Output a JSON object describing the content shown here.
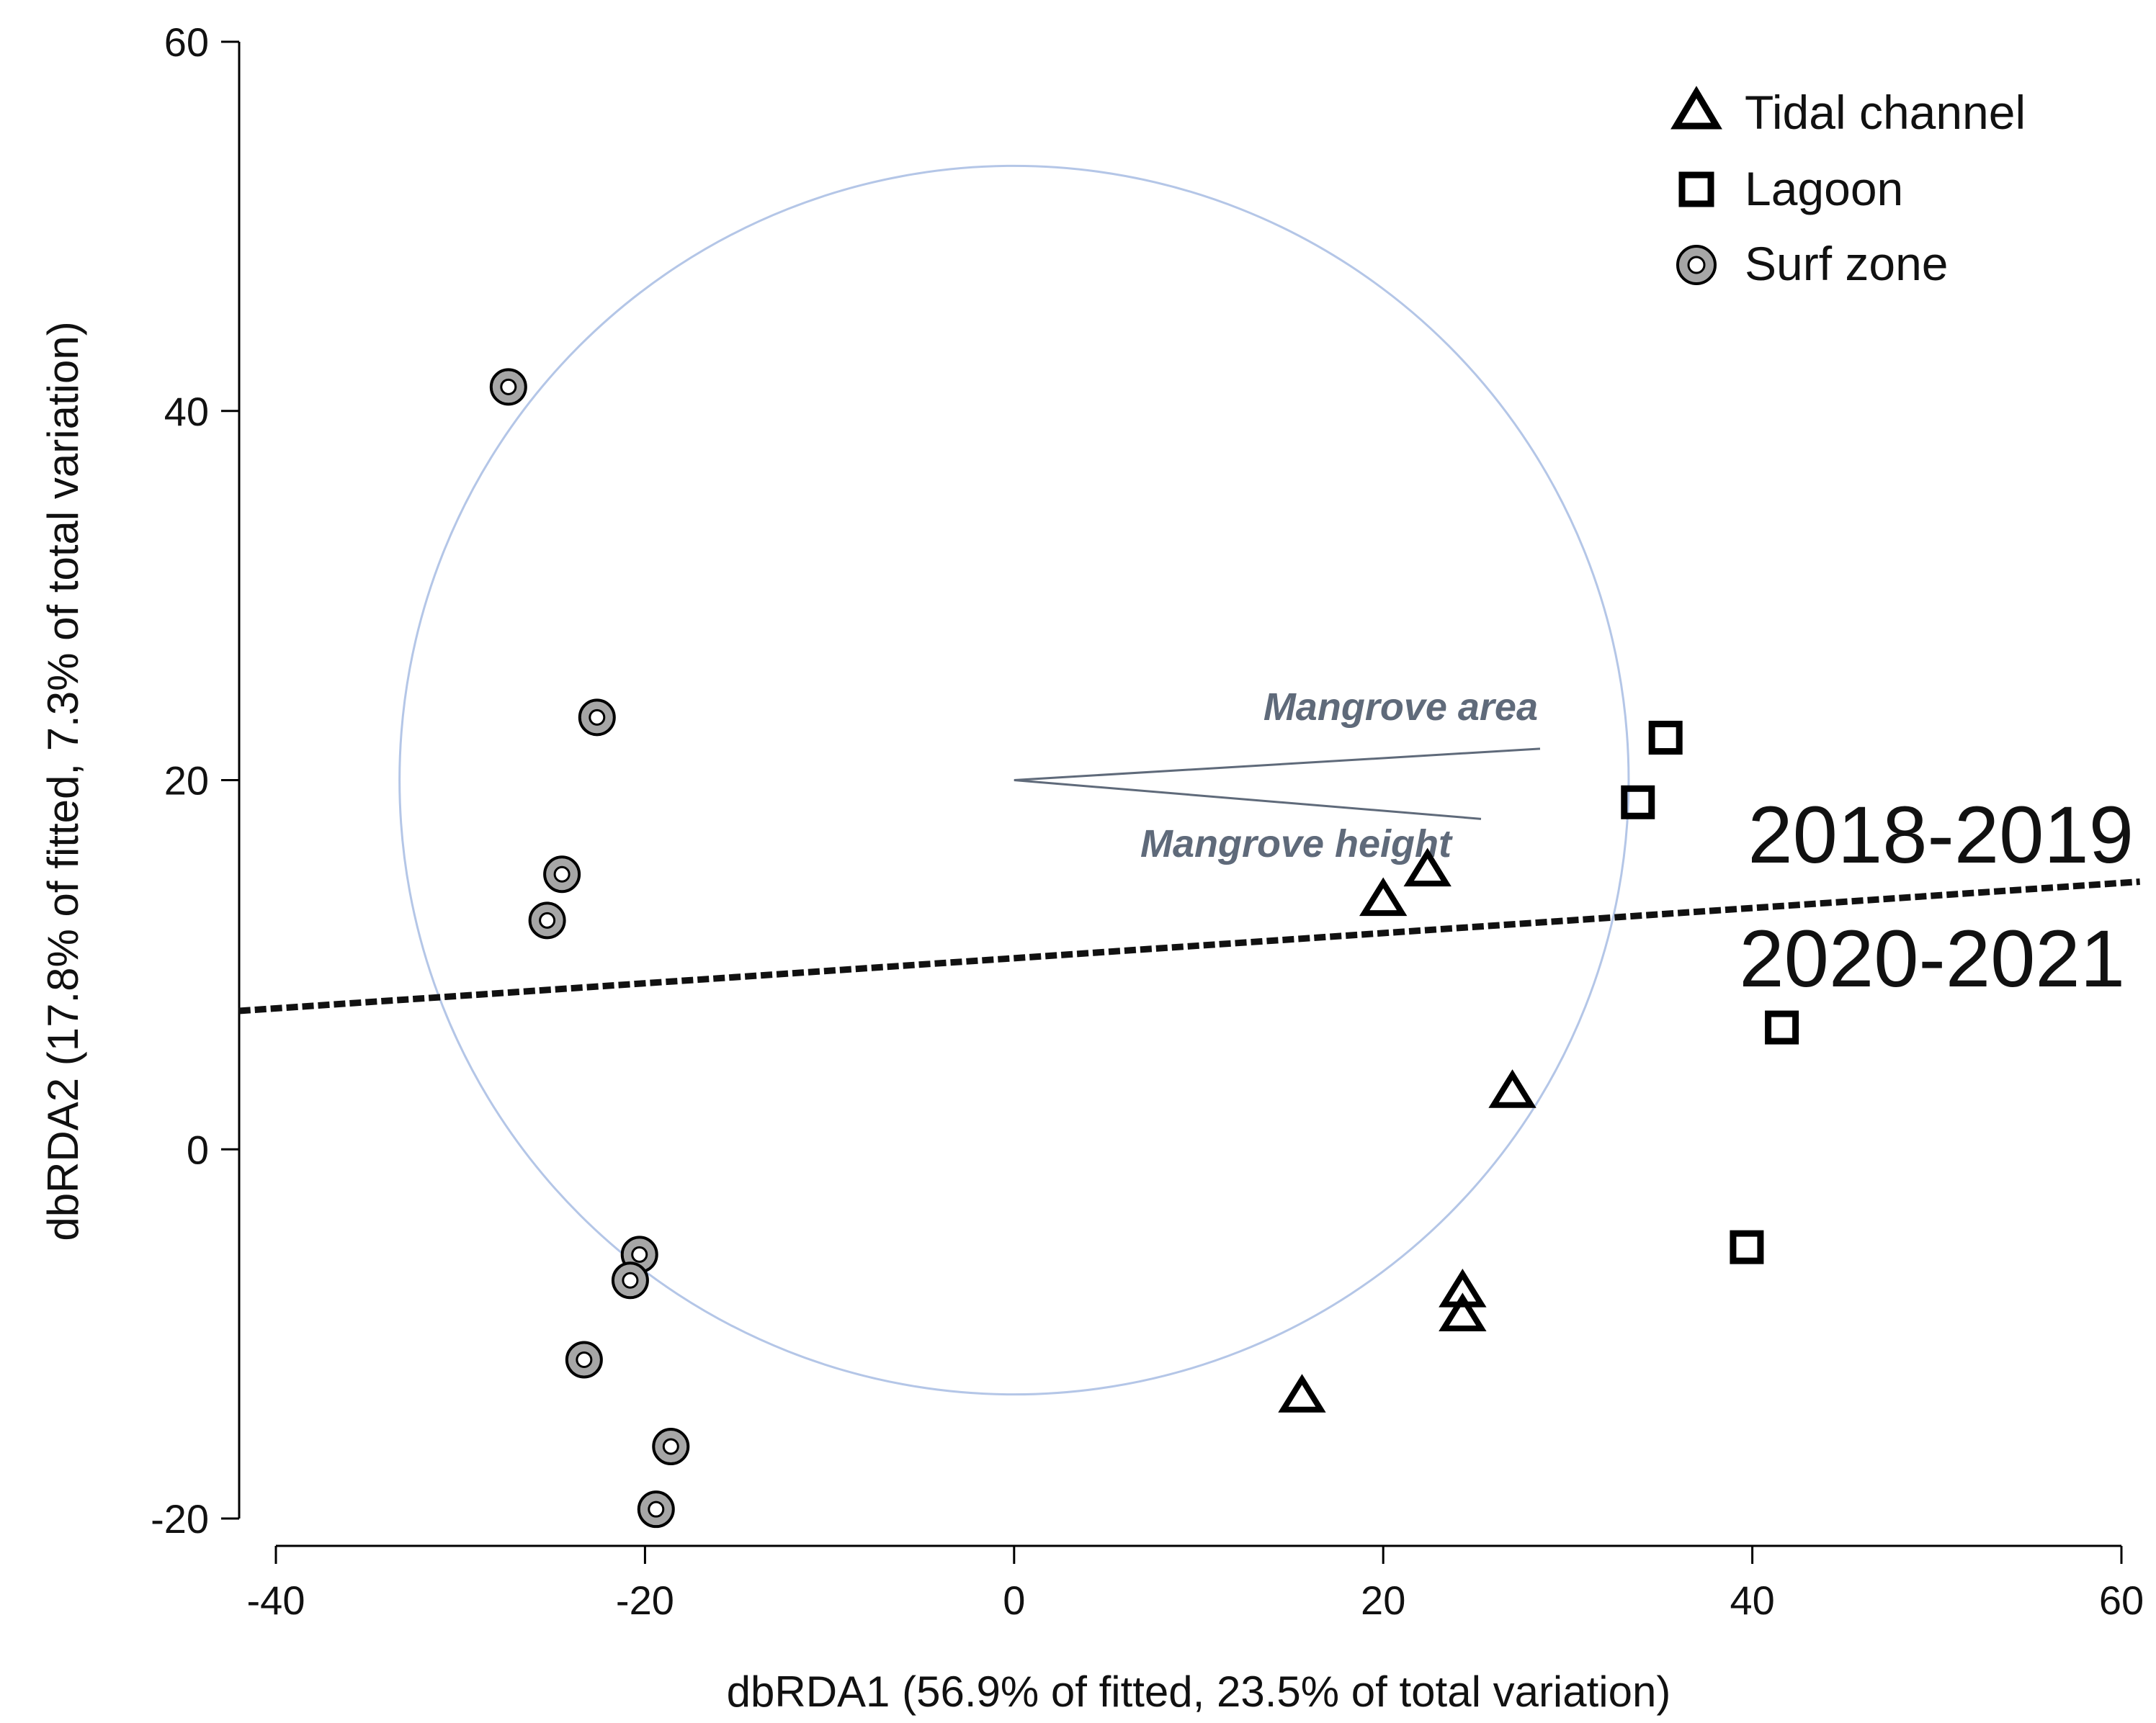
{
  "chart_data": {
    "type": "scatter",
    "title": "",
    "xlabel": "dbRDA1 (56.9% of fitted, 23.5% of total variation)",
    "ylabel": "dbRDA2 (17.8% of fitted, 7.3% of total variation)",
    "xlim": [
      -40,
      60
    ],
    "ylim": [
      -20,
      60
    ],
    "xticks": [
      -40,
      -20,
      0,
      20,
      40,
      60
    ],
    "yticks": [
      -20,
      0,
      20,
      40,
      60
    ],
    "xtick_labels": [
      "-40",
      "-20",
      "0",
      "20",
      "40",
      "60"
    ],
    "ytick_labels": [
      "-20",
      "0",
      "20",
      "40",
      "60"
    ],
    "grid": false,
    "legend_position": "top-right",
    "series": [
      {
        "name": "Tidal channel",
        "marker": "triangle",
        "x": [
          20.0,
          22.4,
          27.0,
          24.3,
          24.3,
          15.6
        ],
        "y": [
          13.5,
          15.1,
          3.1,
          -7.7,
          -9.0,
          -13.4
        ]
      },
      {
        "name": "Lagoon",
        "marker": "square",
        "x": [
          35.3,
          33.8,
          41.6,
          39.7
        ],
        "y": [
          22.3,
          18.8,
          6.6,
          -5.3
        ]
      },
      {
        "name": "Surf zone",
        "marker": "circle",
        "x": [
          -27.4,
          -22.6,
          -24.5,
          -25.3,
          -20.3,
          -20.8,
          -23.3,
          -18.6,
          -19.4
        ],
        "y": [
          41.3,
          23.4,
          14.9,
          12.4,
          -5.7,
          -7.1,
          -11.4,
          -16.1,
          -19.5
        ]
      }
    ],
    "correlation_circle": {
      "center": [
        0,
        20
      ],
      "radius": 33.3,
      "color": "#b4c6e7"
    },
    "vectors": [
      {
        "label": "Mangrove area",
        "from": [
          0,
          20
        ],
        "to": [
          28.5,
          21.7
        ]
      },
      {
        "label": "Mangrove height",
        "from": [
          0,
          20
        ],
        "to": [
          25.3,
          17.9
        ]
      }
    ],
    "divider": {
      "style": "dashed",
      "from": [
        -42,
        7.5
      ],
      "to": [
        61,
        14.5
      ],
      "label_above": "2018-2019",
      "label_below": "2020-2021"
    }
  }
}
